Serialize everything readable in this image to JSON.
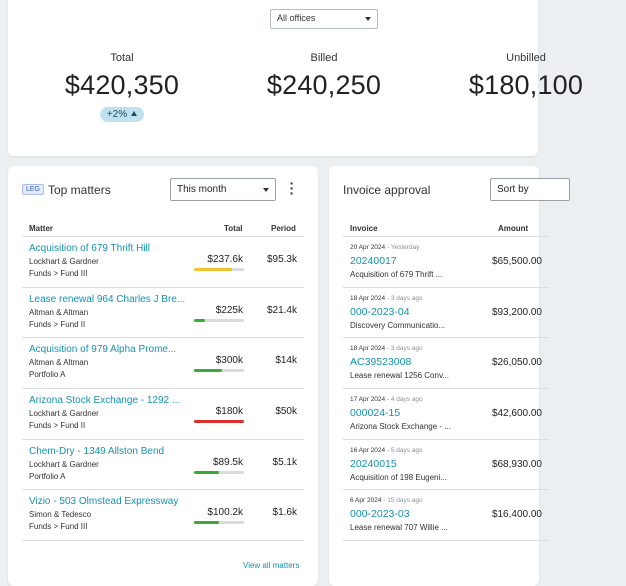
{
  "office_filter": {
    "value": "All offices"
  },
  "metrics": [
    {
      "label": "Total",
      "value": "$420,350",
      "badge": "+2%"
    },
    {
      "label": "Billed",
      "value": "$240,250"
    },
    {
      "label": "Unbilled",
      "value": "$180,100"
    }
  ],
  "top_matters": {
    "tag": "LEG",
    "title": "Top matters",
    "period_filter": "This month",
    "headers": {
      "matter": "Matter",
      "total": "Total",
      "period": "Period"
    },
    "rows": [
      {
        "title": "Acquisition of 679 Thrift Hill",
        "client": "Lockhart & Gardner",
        "path": "Funds > Fund III",
        "total": "$237.6k",
        "period": "$95.3k",
        "progress": 0.75,
        "color": "#f2c12e"
      },
      {
        "title": "Lease renewal 964 Charles J Bre...",
        "client": "Altman & Altman",
        "path": "Funds > Fund II",
        "total": "$225k",
        "period": "$21.4k",
        "progress": 0.22,
        "color": "#3aaa35"
      },
      {
        "title": "Acquisition of 979 Alpha Prome...",
        "client": "Altman & Altman",
        "path": "Portfolio A",
        "total": "$300k",
        "period": "$14k",
        "progress": 0.55,
        "color": "#3aaa35"
      },
      {
        "title": "Arizona Stock Exchange - 1292 ...",
        "client": "Lockhart & Gardner",
        "path": "Funds > Fund II",
        "total": "$180k",
        "period": "$50k",
        "progress": 1.0,
        "color": "#d9302a"
      },
      {
        "title": "Chem-Dry - 1349 Allston Bend",
        "client": "Lockhart & Gardner",
        "path": "Portfolio A",
        "total": "$89.5k",
        "period": "$5.1k",
        "progress": 0.5,
        "color": "#3aaa35"
      },
      {
        "title": "Vizio - 503 Olmstead Expressway",
        "client": "Simon & Tedesco",
        "path": "Funds > Fund III",
        "total": "$100.2k",
        "period": "$1.6k",
        "progress": 0.5,
        "color": "#3aaa35"
      }
    ],
    "view_all": "View all matters"
  },
  "invoice_approval": {
    "title": "Invoice approval",
    "sort_label": "Sort by",
    "headers": {
      "invoice": "Invoice",
      "amount": "Amount"
    },
    "rows": [
      {
        "date": "20 Apr 2024",
        "ago": " - Yesterday",
        "number": "20240017",
        "desc": "Acquisition of 679 Thrift ...",
        "amount": "$65,500.00"
      },
      {
        "date": "18 Apr 2024",
        "ago": " - 3 days ago",
        "number": "000-2023-04",
        "desc": "Discovery Communicatio...",
        "amount": "$93,200.00"
      },
      {
        "date": "18 Apr 2024",
        "ago": " - 3 days ago",
        "number": "AC39523008",
        "desc": "Lease renewal 1256 Conv...",
        "amount": "$26,050.00"
      },
      {
        "date": "17 Apr 2024",
        "ago": " - 4 days ago",
        "number": "000024-15",
        "desc": "Arizona Stock Exchange - ...",
        "amount": "$42,600.00"
      },
      {
        "date": "16 Apr 2024",
        "ago": " - 5 days ago",
        "number": "20240015",
        "desc": "Acquisition of 198 Eugeni...",
        "amount": "$68,930.00"
      },
      {
        "date": "6 Apr 2024",
        "ago": " - 15 days ago",
        "number": "000-2023-03",
        "desc": "Lease renewal 707 Willie ...",
        "amount": "$16,400.00"
      }
    ]
  }
}
